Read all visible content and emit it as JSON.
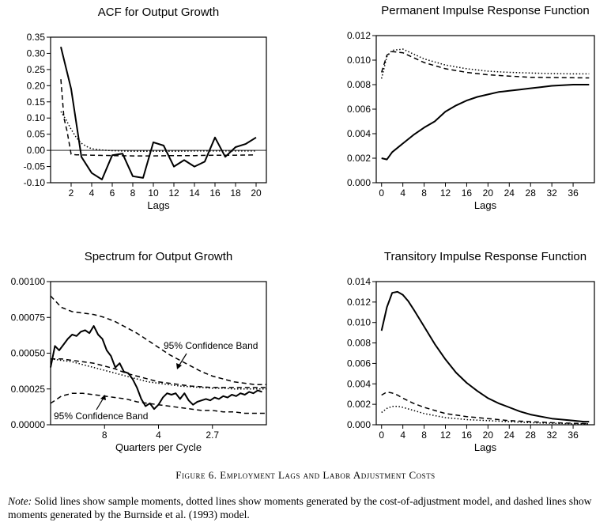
{
  "figure": {
    "caption": "Figure 6. Employment Lags and Labor Adjustment Costs",
    "note_label": "Note:",
    "note_text": " Solid lines show sample moments, dotted lines show moments generated by the cost-of-adjustment model, and dashed lines show moments generated by the Burnside et al. (1993) model."
  },
  "chart_data": [
    {
      "type": "line",
      "title": "ACF for Output Growth",
      "xlabel": "Lags",
      "ylabel": "",
      "xlim": [
        0,
        21
      ],
      "ylim": [
        -0.1,
        0.35
      ],
      "xticks": [
        2,
        4,
        6,
        8,
        10,
        12,
        14,
        16,
        18,
        20
      ],
      "xtick_labels": [
        "2",
        "4",
        "6",
        "8",
        "10",
        "12",
        "14",
        "16",
        "18",
        "20"
      ],
      "yticks": [
        -0.1,
        -0.05,
        0,
        0.05,
        0.1,
        0.15,
        0.2,
        0.25,
        0.3,
        0.35
      ],
      "ytick_labels": [
        "-0.10",
        "-0.05",
        "0.00",
        "0.05",
        "0.10",
        "0.15",
        "0.20",
        "0.25",
        "0.30",
        "0.35"
      ],
      "zero_line": true,
      "series": [
        {
          "style": "solid",
          "x": [
            1,
            2,
            3,
            4,
            5,
            6,
            7,
            8,
            9,
            10,
            11,
            12,
            13,
            14,
            15,
            16,
            17,
            18,
            19,
            20
          ],
          "y": [
            0.32,
            0.19,
            -0.02,
            -0.07,
            -0.09,
            -0.015,
            -0.01,
            -0.08,
            -0.085,
            0.025,
            0.015,
            -0.05,
            -0.03,
            -0.05,
            -0.035,
            0.04,
            -0.02,
            0.01,
            0.02,
            0.04
          ]
        },
        {
          "style": "dotted",
          "x": [
            1,
            1.5,
            2,
            2.5,
            3,
            3.5,
            4,
            5,
            6,
            7,
            8,
            10,
            12,
            14,
            16,
            18,
            20
          ],
          "y": [
            0.12,
            0.095,
            0.065,
            0.04,
            0.022,
            0.012,
            0.005,
            0.001,
            -0.001,
            -0.002,
            -0.003,
            -0.003,
            -0.003,
            -0.002,
            -0.002,
            -0.002,
            -0.002
          ]
        },
        {
          "style": "dashed",
          "x": [
            1,
            1.3,
            1.6,
            2,
            2.5,
            3,
            4,
            6,
            8,
            10,
            12,
            14,
            16,
            18,
            20
          ],
          "y": [
            0.22,
            0.1,
            0.06,
            -0.012,
            -0.014,
            -0.014,
            -0.015,
            -0.016,
            -0.017,
            -0.017,
            -0.016,
            -0.016,
            -0.015,
            -0.015,
            -0.014
          ]
        }
      ]
    },
    {
      "type": "line",
      "title": "Permanent Impulse Response Function",
      "xlabel": "Lags",
      "ylabel": "",
      "xlim": [
        -1,
        40
      ],
      "ylim": [
        0,
        0.012
      ],
      "xticks": [
        0,
        4,
        8,
        12,
        16,
        20,
        24,
        28,
        32,
        36
      ],
      "xtick_labels": [
        "0",
        "4",
        "8",
        "12",
        "16",
        "20",
        "24",
        "28",
        "32",
        "36"
      ],
      "yticks": [
        0,
        0.002,
        0.004,
        0.006,
        0.008,
        0.01,
        0.012
      ],
      "ytick_labels": [
        "0.000",
        "0.002",
        "0.004",
        "0.006",
        "0.008",
        "0.010",
        "0.012"
      ],
      "series": [
        {
          "style": "solid",
          "x": [
            0,
            1,
            2,
            4,
            6,
            8,
            10,
            12,
            14,
            16,
            18,
            20,
            22,
            24,
            26,
            28,
            30,
            32,
            34,
            36,
            38,
            39
          ],
          "y": [
            0.002,
            0.0019,
            0.0025,
            0.0032,
            0.0039,
            0.0045,
            0.005,
            0.0058,
            0.0063,
            0.0067,
            0.007,
            0.0072,
            0.0074,
            0.0075,
            0.0076,
            0.0077,
            0.0078,
            0.0079,
            0.00795,
            0.008,
            0.008,
            0.008
          ]
        },
        {
          "style": "dotted",
          "x": [
            0,
            1,
            2,
            4,
            6,
            8,
            12,
            16,
            20,
            24,
            28,
            32,
            36,
            39
          ],
          "y": [
            0.0085,
            0.0103,
            0.0108,
            0.0109,
            0.0105,
            0.0101,
            0.0096,
            0.0093,
            0.0091,
            0.009,
            0.00895,
            0.0089,
            0.00888,
            0.00888
          ]
        },
        {
          "style": "dashed",
          "x": [
            0,
            1,
            2,
            4,
            6,
            8,
            12,
            16,
            20,
            24,
            28,
            32,
            36,
            39
          ],
          "y": [
            0.009,
            0.0104,
            0.0107,
            0.0106,
            0.0102,
            0.0098,
            0.0093,
            0.009,
            0.0088,
            0.0087,
            0.0086,
            0.00858,
            0.00856,
            0.00855
          ]
        }
      ]
    },
    {
      "type": "line",
      "title": "Spectrum for Output Growth",
      "xlabel": "Quarters per Cycle",
      "ylabel": "",
      "xlim": [
        0,
        1
      ],
      "ylim": [
        0,
        0.001
      ],
      "xtick_positions": [
        0.25,
        0.5,
        0.75
      ],
      "xtick_labels": [
        "8",
        "4",
        "2.7"
      ],
      "yticks": [
        0,
        0.00025,
        0.0005,
        0.00075,
        0.001
      ],
      "ytick_labels": [
        "0.00000",
        "0.00025",
        "0.00050",
        "0.00075",
        "0.00100"
      ],
      "annotations": [
        "95% Confidence Band",
        "95% Confidence Band"
      ],
      "series": [
        {
          "style": "solid",
          "x": [
            0,
            0.02,
            0.04,
            0.06,
            0.08,
            0.1,
            0.12,
            0.14,
            0.16,
            0.18,
            0.2,
            0.22,
            0.24,
            0.26,
            0.28,
            0.3,
            0.32,
            0.34,
            0.36,
            0.38,
            0.4,
            0.42,
            0.44,
            0.46,
            0.48,
            0.5,
            0.52,
            0.54,
            0.56,
            0.58,
            0.6,
            0.62,
            0.64,
            0.66,
            0.68,
            0.7,
            0.72,
            0.74,
            0.76,
            0.78,
            0.8,
            0.82,
            0.84,
            0.86,
            0.88,
            0.9,
            0.92,
            0.94,
            0.96,
            0.98
          ],
          "y": [
            0.0004,
            0.00055,
            0.00052,
            0.00056,
            0.0006,
            0.00063,
            0.00062,
            0.00065,
            0.00066,
            0.00064,
            0.00069,
            0.00063,
            0.0006,
            0.00052,
            0.00048,
            0.0004,
            0.00043,
            0.00037,
            0.00036,
            0.00032,
            0.00026,
            0.00018,
            0.00013,
            0.00015,
            0.00011,
            0.00014,
            0.00019,
            0.00022,
            0.00021,
            0.00022,
            0.00018,
            0.00022,
            0.00017,
            0.00014,
            0.00016,
            0.00017,
            0.00018,
            0.00017,
            0.00019,
            0.00018,
            0.0002,
            0.00019,
            0.00021,
            0.0002,
            0.00022,
            0.00021,
            0.00023,
            0.00022,
            0.00024,
            0.00023
          ]
        },
        {
          "style": "dotted",
          "x": [
            0,
            0.05,
            0.1,
            0.15,
            0.2,
            0.25,
            0.3,
            0.35,
            0.4,
            0.45,
            0.5,
            0.55,
            0.6,
            0.65,
            0.7,
            0.75,
            0.8,
            0.85,
            0.9,
            0.95,
            1.0
          ],
          "y": [
            0.00046,
            0.00045,
            0.00044,
            0.00042,
            0.0004,
            0.00038,
            0.00036,
            0.00034,
            0.00032,
            0.0003,
            0.00029,
            0.00028,
            0.00027,
            0.000265,
            0.00026,
            0.000255,
            0.000255,
            0.00025,
            0.00025,
            0.00025,
            0.00025
          ]
        },
        {
          "style": "dashed",
          "x": [
            0,
            0.05,
            0.1,
            0.15,
            0.2,
            0.25,
            0.3,
            0.35,
            0.4,
            0.45,
            0.5,
            0.55,
            0.6,
            0.65,
            0.7,
            0.75,
            0.8,
            0.85,
            0.9,
            0.95,
            1.0
          ],
          "y": [
            0.00046,
            0.00046,
            0.00045,
            0.00044,
            0.00043,
            0.00041,
            0.00039,
            0.00036,
            0.00034,
            0.00032,
            0.0003,
            0.00029,
            0.00028,
            0.00027,
            0.000265,
            0.00026,
            0.00026,
            0.00026,
            0.00026,
            0.00026,
            0.00026
          ]
        },
        {
          "style": "dashed",
          "x": [
            0,
            0.05,
            0.1,
            0.15,
            0.2,
            0.25,
            0.3,
            0.35,
            0.4,
            0.45,
            0.5,
            0.55,
            0.6,
            0.65,
            0.7,
            0.75,
            0.8,
            0.85,
            0.9,
            0.95,
            1.0
          ],
          "y": [
            0.0009,
            0.00082,
            0.00079,
            0.00078,
            0.00077,
            0.00075,
            0.00072,
            0.00068,
            0.00064,
            0.00059,
            0.00054,
            0.00049,
            0.00045,
            0.00041,
            0.00037,
            0.00034,
            0.00032,
            0.0003,
            0.00029,
            0.00028,
            0.00028
          ]
        },
        {
          "style": "dashed",
          "x": [
            0,
            0.05,
            0.1,
            0.15,
            0.2,
            0.25,
            0.3,
            0.35,
            0.4,
            0.45,
            0.5,
            0.55,
            0.6,
            0.65,
            0.7,
            0.75,
            0.8,
            0.85,
            0.9,
            0.95,
            1.0
          ],
          "y": [
            0.00015,
            0.0002,
            0.00022,
            0.00022,
            0.00021,
            0.0002,
            0.00019,
            0.00018,
            0.00016,
            0.00015,
            0.00014,
            0.00013,
            0.00012,
            0.00011,
            0.0001,
            0.0001,
            9e-05,
            9e-05,
            8e-05,
            8e-05,
            8e-05
          ]
        }
      ]
    },
    {
      "type": "line",
      "title": "Transitory Impulse Response Function",
      "xlabel": "Lags",
      "ylabel": "",
      "xlim": [
        -1,
        40
      ],
      "ylim": [
        0,
        0.014
      ],
      "xticks": [
        0,
        4,
        8,
        12,
        16,
        20,
        24,
        28,
        32,
        36
      ],
      "xtick_labels": [
        "0",
        "4",
        "8",
        "12",
        "16",
        "20",
        "24",
        "28",
        "32",
        "36"
      ],
      "yticks": [
        0,
        0.002,
        0.004,
        0.006,
        0.008,
        0.01,
        0.012,
        0.014
      ],
      "ytick_labels": [
        "0.000",
        "0.002",
        "0.004",
        "0.006",
        "0.008",
        "0.010",
        "0.012",
        "0.014"
      ],
      "series": [
        {
          "style": "solid",
          "x": [
            0,
            1,
            2,
            3,
            4,
            5,
            6,
            8,
            10,
            12,
            14,
            16,
            18,
            20,
            22,
            24,
            26,
            28,
            30,
            32,
            34,
            36,
            38,
            39
          ],
          "y": [
            0.0092,
            0.0115,
            0.0129,
            0.013,
            0.0127,
            0.0121,
            0.0113,
            0.0096,
            0.0079,
            0.0064,
            0.0051,
            0.0041,
            0.0033,
            0.0026,
            0.0021,
            0.0017,
            0.0013,
            0.001,
            0.0008,
            0.0006,
            0.0005,
            0.0004,
            0.0003,
            0.0003
          ]
        },
        {
          "style": "dashed",
          "x": [
            0,
            1,
            2,
            3,
            4,
            6,
            8,
            10,
            12,
            16,
            20,
            24,
            28,
            32,
            36,
            39
          ],
          "y": [
            0.0029,
            0.0032,
            0.0031,
            0.0029,
            0.0026,
            0.0021,
            0.0017,
            0.0014,
            0.0011,
            0.0008,
            0.0006,
            0.0004,
            0.0003,
            0.0002,
            0.00015,
            0.0001
          ]
        },
        {
          "style": "dotted",
          "x": [
            0,
            1,
            2,
            3,
            4,
            6,
            8,
            10,
            12,
            16,
            20,
            24,
            28,
            32,
            36,
            39
          ],
          "y": [
            0.0012,
            0.0016,
            0.0018,
            0.0018,
            0.0017,
            0.0014,
            0.0011,
            0.0009,
            0.0007,
            0.0005,
            0.0004,
            0.0003,
            0.0002,
            0.00015,
            0.0001,
            0.0001
          ]
        }
      ]
    }
  ]
}
